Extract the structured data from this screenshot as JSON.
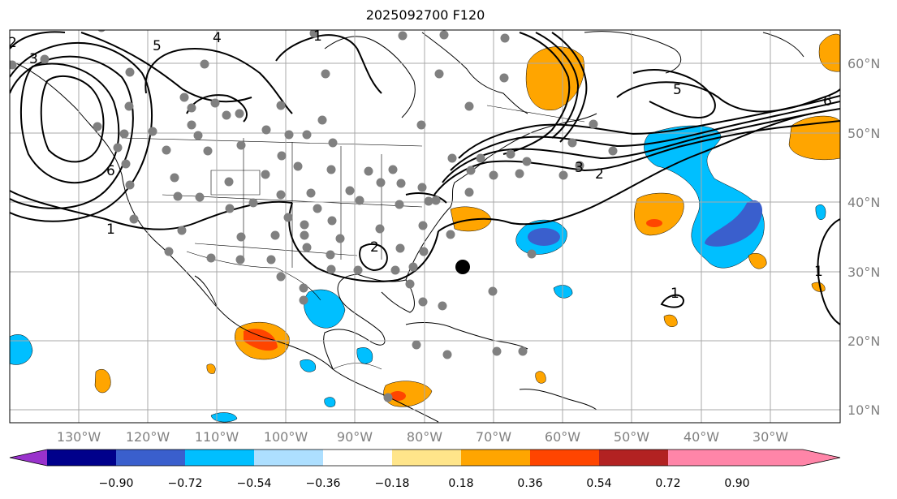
{
  "title": "2025092700 F120",
  "lat_labels": [
    "60°N",
    "50°N",
    "40°N",
    "30°N",
    "20°N",
    "10°N"
  ],
  "lon_labels": [
    "130°W",
    "120°W",
    "110°W",
    "100°W",
    "90°W",
    "80°W",
    "70°W",
    "60°W",
    "50°W",
    "40°W",
    "30°W"
  ],
  "colorbar": {
    "ticks": [
      "−0.90",
      "−0.72",
      "−0.54",
      "−0.36",
      "−0.18",
      "0.18",
      "0.36",
      "0.54",
      "0.72",
      "0.90"
    ],
    "colors": [
      "#9932CC",
      "#00008B",
      "#3A5FCD",
      "#00BFFF",
      "#ADDFFF",
      "#FFFFFF",
      "#FFE58A",
      "#FFA500",
      "#FF4500",
      "#B22222",
      "#FF85A8"
    ]
  },
  "contour_labels": [
    "5",
    "4",
    "3",
    "2",
    "6",
    "1",
    "5",
    "6",
    "3",
    "2",
    "1",
    "2",
    "1",
    "1"
  ],
  "marker": "storm-center-marker"
}
